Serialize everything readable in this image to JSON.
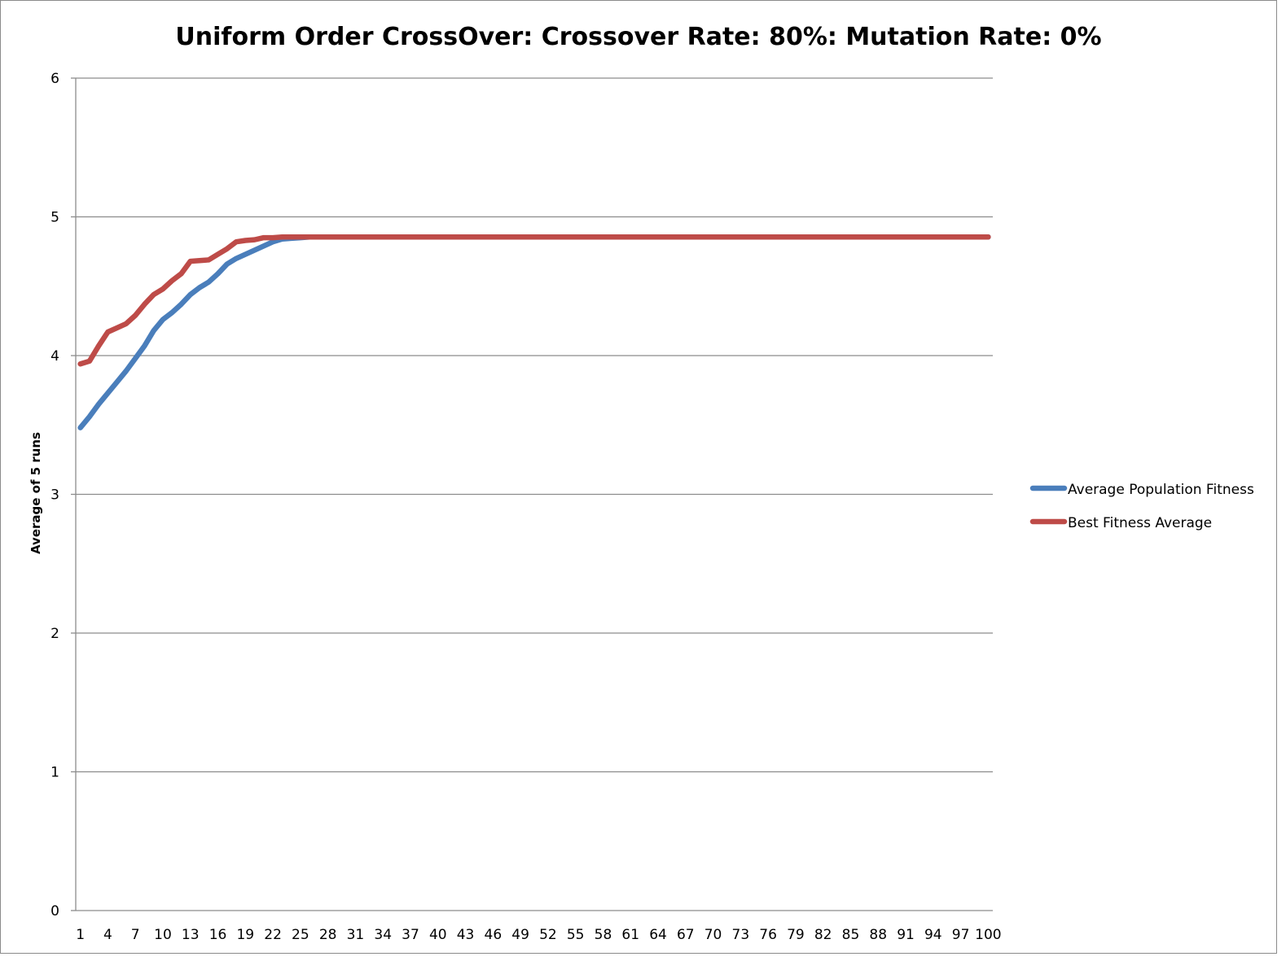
{
  "chart_data": {
    "type": "line",
    "title": "Uniform Order CrossOver: Crossover Rate: 80%: Mutation Rate: 0%",
    "xlabel": "",
    "ylabel": "Average of 5 runs",
    "ylim": [
      0,
      6
    ],
    "yticks": [
      0,
      1,
      2,
      3,
      4,
      5,
      6
    ],
    "xlim": [
      1,
      100
    ],
    "xticks": [
      1,
      4,
      7,
      10,
      13,
      16,
      19,
      22,
      25,
      28,
      31,
      34,
      37,
      40,
      43,
      46,
      49,
      52,
      55,
      58,
      61,
      64,
      67,
      70,
      73,
      76,
      79,
      82,
      85,
      88,
      91,
      94,
      97,
      100
    ],
    "grid": "horizontal",
    "legend_position": "right",
    "series": [
      {
        "name": "Average Population Fitness",
        "color": "#4a7ebb",
        "points": [
          [
            1,
            3.48
          ],
          [
            2,
            3.56
          ],
          [
            3,
            3.65
          ],
          [
            4,
            3.73
          ],
          [
            5,
            3.81
          ],
          [
            6,
            3.89
          ],
          [
            7,
            3.98
          ],
          [
            8,
            4.07
          ],
          [
            9,
            4.18
          ],
          [
            10,
            4.26
          ],
          [
            11,
            4.31
          ],
          [
            12,
            4.37
          ],
          [
            13,
            4.44
          ],
          [
            14,
            4.49
          ],
          [
            15,
            4.53
          ],
          [
            16,
            4.59
          ],
          [
            17,
            4.66
          ],
          [
            18,
            4.7
          ],
          [
            19,
            4.73
          ],
          [
            20,
            4.76
          ],
          [
            21,
            4.79
          ],
          [
            22,
            4.82
          ],
          [
            23,
            4.84
          ],
          [
            24,
            4.845
          ],
          [
            25,
            4.85
          ],
          [
            26,
            4.855
          ],
          [
            100,
            4.855
          ]
        ]
      },
      {
        "name": "Best Fitness Average",
        "color": "#be4b48",
        "points": [
          [
            1,
            3.94
          ],
          [
            2,
            3.96
          ],
          [
            3,
            4.07
          ],
          [
            4,
            4.17
          ],
          [
            5,
            4.2
          ],
          [
            6,
            4.23
          ],
          [
            7,
            4.29
          ],
          [
            8,
            4.37
          ],
          [
            9,
            4.44
          ],
          [
            10,
            4.48
          ],
          [
            11,
            4.54
          ],
          [
            12,
            4.59
          ],
          [
            13,
            4.68
          ],
          [
            14,
            4.685
          ],
          [
            15,
            4.69
          ],
          [
            16,
            4.73
          ],
          [
            17,
            4.77
          ],
          [
            18,
            4.82
          ],
          [
            19,
            4.83
          ],
          [
            20,
            4.835
          ],
          [
            21,
            4.85
          ],
          [
            22,
            4.85
          ],
          [
            23,
            4.855
          ],
          [
            100,
            4.855
          ]
        ]
      }
    ]
  }
}
